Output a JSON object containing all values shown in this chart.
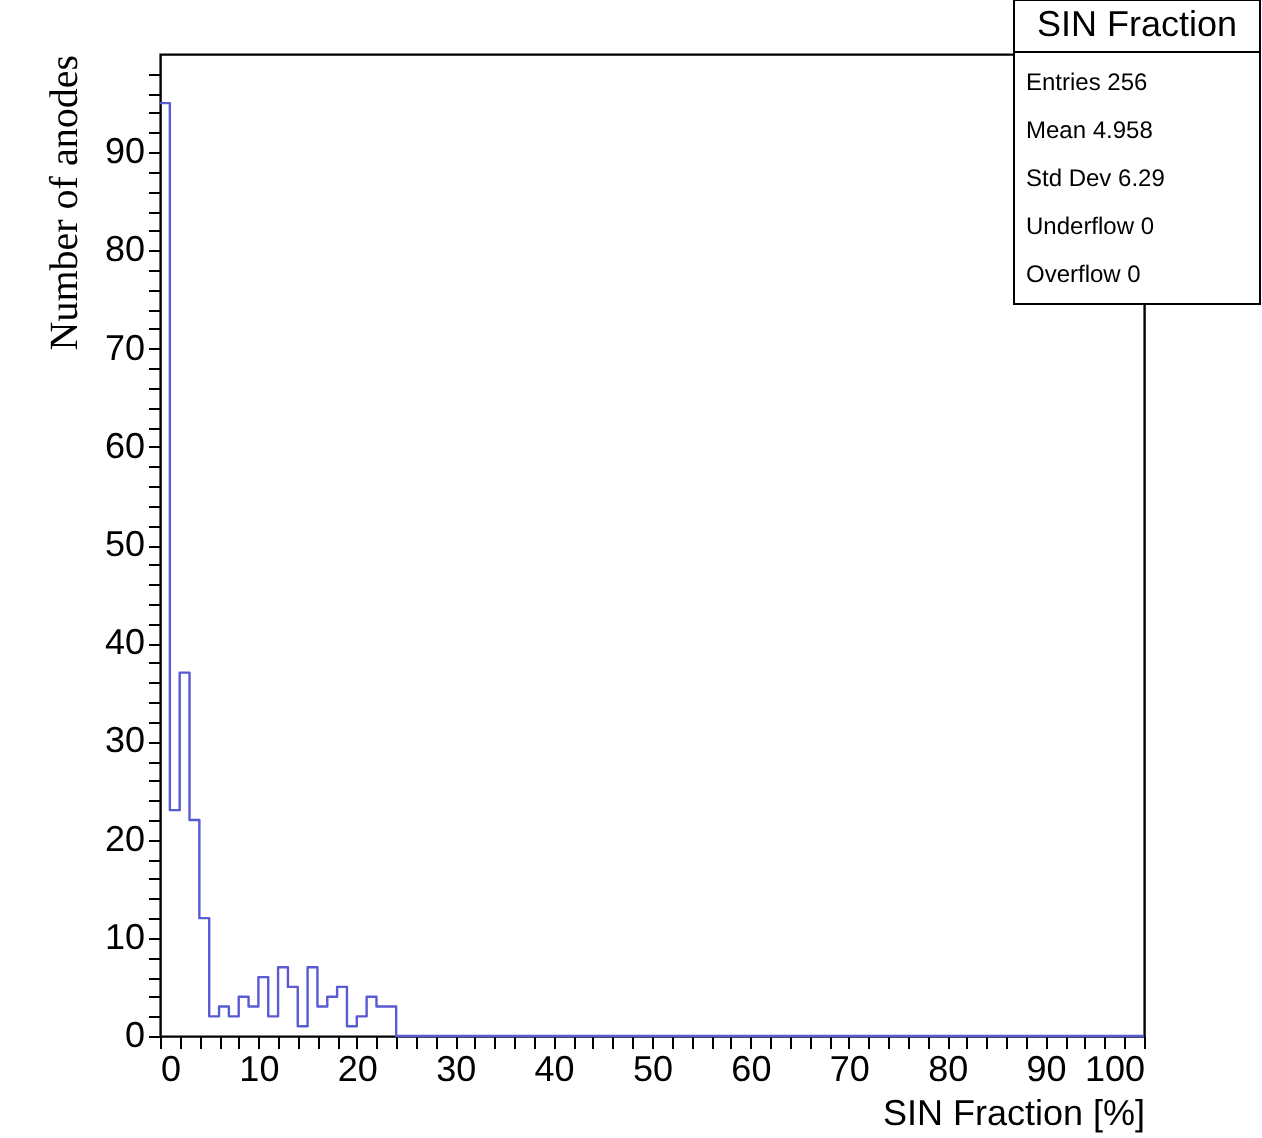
{
  "chart_data": {
    "type": "histogram",
    "title": "SIN Fraction",
    "xlabel": "SIN Fraction [%]",
    "ylabel": "Number of anodes",
    "bins": [
      0,
      1,
      2,
      3,
      4,
      5,
      6,
      7,
      8,
      9,
      10,
      11,
      12,
      13,
      14,
      15,
      16,
      17,
      18,
      19,
      20,
      21,
      22,
      23,
      24,
      25,
      26,
      27,
      28,
      29,
      30,
      31,
      32,
      33,
      34,
      35,
      36,
      37,
      38,
      39,
      40,
      41,
      42,
      43,
      44,
      45,
      46,
      47,
      48,
      49,
      50,
      51,
      52,
      53,
      54,
      55,
      56,
      57,
      58,
      59,
      60,
      61,
      62,
      63,
      64,
      65,
      66,
      67,
      68,
      69,
      70,
      71,
      72,
      73,
      74,
      75,
      76,
      77,
      78,
      79,
      80,
      81,
      82,
      83,
      84,
      85,
      86,
      87,
      88,
      89,
      90,
      91,
      92,
      93,
      94,
      95,
      96,
      97,
      98,
      99,
      100
    ],
    "values": [
      95,
      23,
      37,
      22,
      12,
      2,
      3,
      2,
      4,
      3,
      6,
      2,
      7,
      5,
      1,
      7,
      3,
      4,
      5,
      1,
      2,
      4,
      3,
      3,
      0,
      0,
      0,
      0,
      0,
      0,
      0,
      0,
      0,
      0,
      0,
      0,
      0,
      0,
      0,
      0,
      0,
      0,
      0,
      0,
      0,
      0,
      0,
      0,
      0,
      0,
      0,
      0,
      0,
      0,
      0,
      0,
      0,
      0,
      0,
      0,
      0,
      0,
      0,
      0,
      0,
      0,
      0,
      0,
      0,
      0,
      0,
      0,
      0,
      0,
      0,
      0,
      0,
      0,
      0,
      0,
      0,
      0,
      0,
      0,
      0,
      0,
      0,
      0,
      0,
      0,
      0,
      0,
      0,
      0,
      0,
      0,
      0,
      0,
      0,
      0
    ],
    "color": "#5a5ad2",
    "xlim": [
      0,
      100
    ],
    "xticks": [
      0,
      {
        "value": 2,
        "label": null
      },
      {
        "value": 4,
        "label": null
      },
      {
        "value": 6,
        "label": null
      },
      {
        "value": 8,
        "label": null
      },
      10,
      {
        "value": 12,
        "label": null
      },
      {
        "value": 14,
        "label": null
      },
      {
        "value": 16,
        "label": null
      },
      {
        "value": 18,
        "label": null
      },
      20,
      {
        "value": 22,
        "label": null
      },
      {
        "value": 24,
        "label": null
      },
      {
        "value": 26,
        "label": null
      },
      {
        "value": 28,
        "label": null
      },
      30,
      {
        "value": 32,
        "label": null
      },
      {
        "value": 34,
        "label": null
      },
      {
        "value": 36,
        "label": null
      },
      {
        "value": 38,
        "label": null
      },
      40,
      {
        "value": 42,
        "label": null
      },
      {
        "value": 44,
        "label": null
      },
      {
        "value": 46,
        "label": null
      },
      {
        "value": 48,
        "label": null
      },
      50,
      {
        "value": 52,
        "label": null
      },
      {
        "value": 54,
        "label": null
      },
      {
        "value": 56,
        "label": null
      },
      {
        "value": 58,
        "label": null
      },
      60,
      {
        "value": 62,
        "label": null
      },
      {
        "value": 64,
        "label": null
      },
      {
        "value": 66,
        "label": null
      },
      {
        "value": 68,
        "label": null
      },
      70,
      {
        "value": 72,
        "label": null
      },
      {
        "value": 74,
        "label": null
      },
      {
        "value": 76,
        "label": null
      },
      {
        "value": 78,
        "label": null
      },
      80,
      {
        "value": 82,
        "label": null
      },
      {
        "value": 84,
        "label": null
      },
      {
        "value": 86,
        "label": null
      },
      {
        "value": 88,
        "label": null
      },
      90,
      {
        "value": 92,
        "label": null
      },
      {
        "value": 94,
        "label": null
      },
      {
        "value": 96,
        "label": null
      },
      {
        "value": 98,
        "label": null
      },
      100
    ],
    "ylim": [
      0,
      100
    ],
    "yticks": [
      0,
      {
        "value": 2,
        "label": null
      },
      {
        "value": 4,
        "label": null
      },
      {
        "value": 6,
        "label": null
      },
      {
        "value": 8,
        "label": null
      },
      10,
      {
        "value": 12,
        "label": null
      },
      {
        "value": 14,
        "label": null
      },
      {
        "value": 16,
        "label": null
      },
      {
        "value": 18,
        "label": null
      },
      20,
      {
        "value": 22,
        "label": null
      },
      {
        "value": 24,
        "label": null
      },
      {
        "value": 26,
        "label": null
      },
      {
        "value": 28,
        "label": null
      },
      30,
      {
        "value": 32,
        "label": null
      },
      {
        "value": 34,
        "label": null
      },
      {
        "value": 36,
        "label": null
      },
      {
        "value": 38,
        "label": null
      },
      40,
      {
        "value": 42,
        "label": null
      },
      {
        "value": 44,
        "label": null
      },
      {
        "value": 46,
        "label": null
      },
      {
        "value": 48,
        "label": null
      },
      50,
      {
        "value": 52,
        "label": null
      },
      {
        "value": 54,
        "label": null
      },
      {
        "value": 56,
        "label": null
      },
      {
        "value": 58,
        "label": null
      },
      60,
      {
        "value": 62,
        "label": null
      },
      {
        "value": 64,
        "label": null
      },
      {
        "value": 66,
        "label": null
      },
      {
        "value": 68,
        "label": null
      },
      70,
      {
        "value": 72,
        "label": null
      },
      {
        "value": 74,
        "label": null
      },
      {
        "value": 76,
        "label": null
      },
      {
        "value": 78,
        "label": null
      },
      80,
      {
        "value": 82,
        "label": null
      },
      {
        "value": 84,
        "label": null
      },
      {
        "value": 86,
        "label": null
      },
      {
        "value": 88,
        "label": null
      },
      90,
      {
        "value": 92,
        "label": null
      },
      {
        "value": 94,
        "label": null
      },
      {
        "value": 96,
        "label": null
      },
      {
        "value": 98,
        "label": null
      }
    ],
    "grid": false,
    "annotations": [
      "Entries 256",
      "Mean 4.958",
      "Std Dev 6.29",
      "Underflow 0",
      "Overflow 0"
    ]
  }
}
